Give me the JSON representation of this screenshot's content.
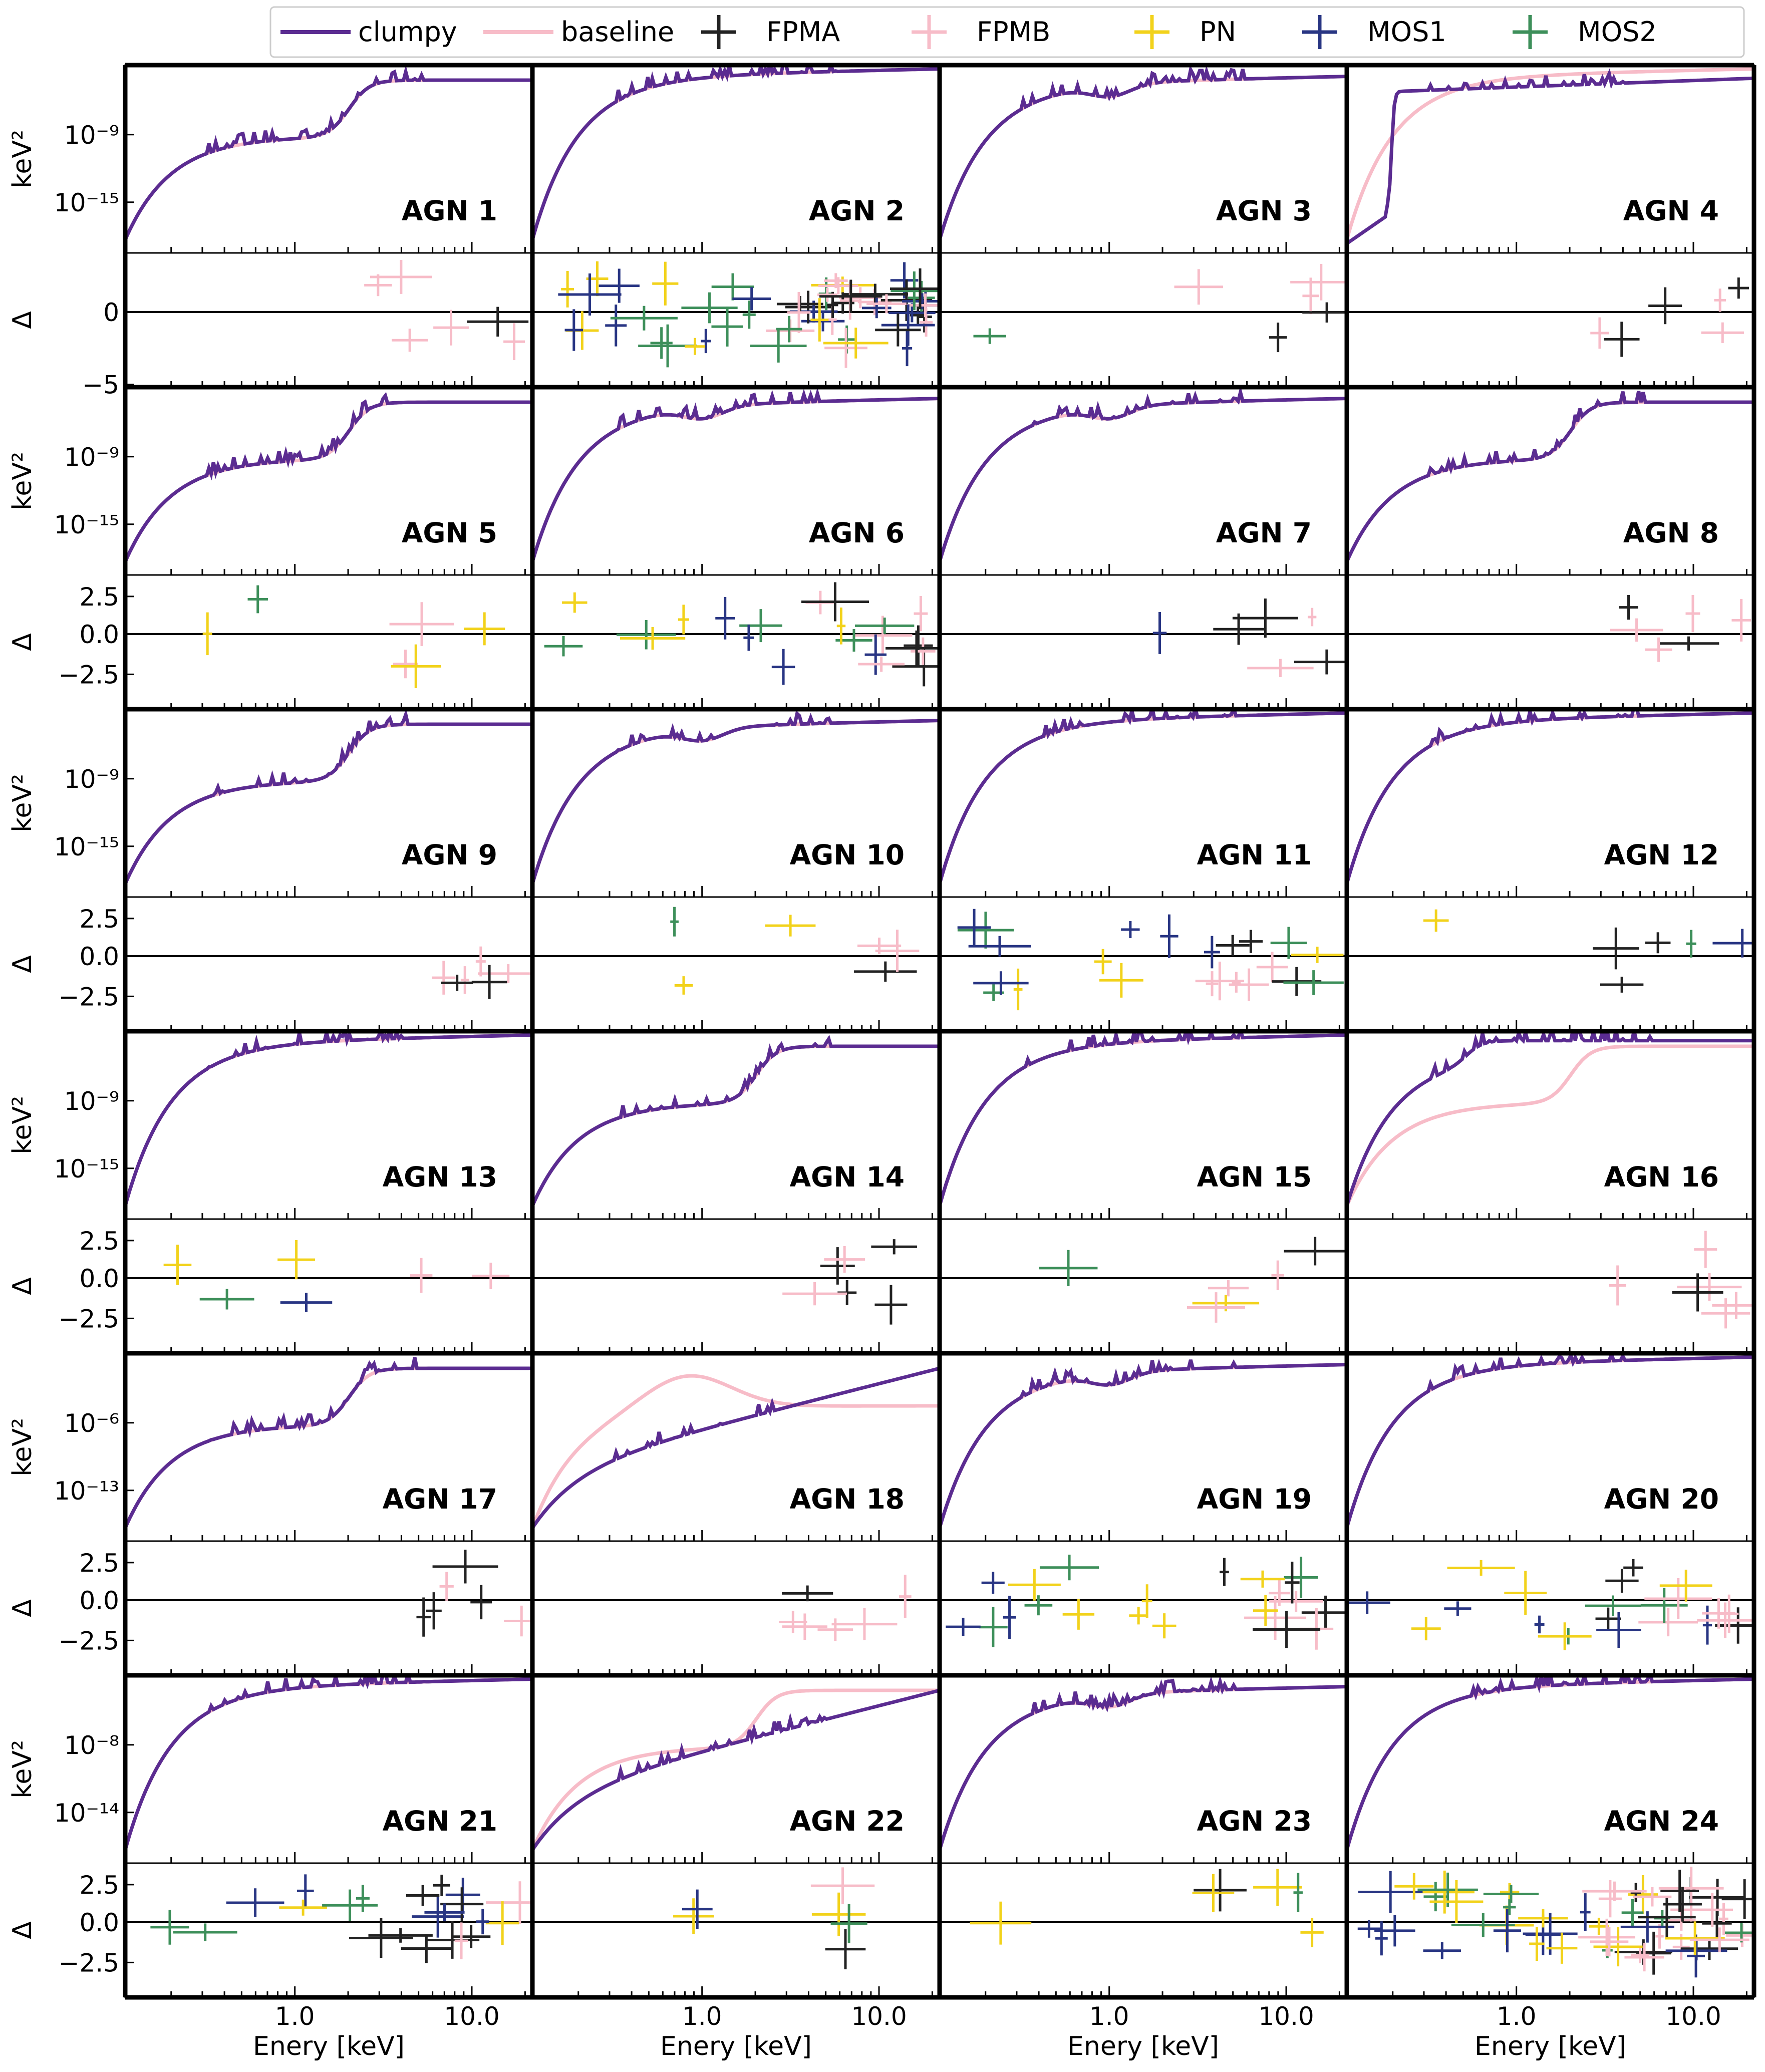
{
  "chart_data": {
    "type": "line",
    "title": "",
    "xlabel": "Enery [keV]",
    "ylabel_top": "keV²",
    "ylabel_bottom": "Δ",
    "xlim": [
      0.11,
      22.0
    ],
    "x_ticks": [
      "1.0",
      "10.0"
    ],
    "legend": {
      "placement": "top",
      "entries": [
        {
          "name": "clumpy",
          "kind": "line",
          "color": "#5b2c91"
        },
        {
          "name": "baseline",
          "kind": "line",
          "color": "#f7bcc8"
        },
        {
          "name": "FPMA",
          "kind": "errorbar",
          "color": "#222222"
        },
        {
          "name": "FPMB",
          "kind": "errorbar",
          "color": "#f7bcc8"
        },
        {
          "name": "PN",
          "kind": "errorbar",
          "color": "#f2d21b"
        },
        {
          "name": "MOS1",
          "kind": "errorbar",
          "color": "#283583"
        },
        {
          "name": "MOS2",
          "kind": "errorbar",
          "color": "#3d8f5a"
        }
      ]
    },
    "rows": [
      {
        "model_yticks": [
          "10⁻⁹",
          "10⁻¹⁵"
        ],
        "resid_yticks": [
          "0",
          "−5"
        ]
      },
      {
        "model_yticks": [
          "10⁻⁹",
          "10⁻¹⁵"
        ],
        "resid_yticks": [
          "2.5",
          "0.0",
          "−2.5"
        ]
      },
      {
        "model_yticks": [
          "10⁻⁹",
          "10⁻¹⁵"
        ],
        "resid_yticks": [
          "2.5",
          "0.0",
          "−2.5"
        ]
      },
      {
        "model_yticks": [
          "10⁻⁹",
          "10⁻¹⁵"
        ],
        "resid_yticks": [
          "2.5",
          "0.0",
          "−2.5"
        ]
      },
      {
        "model_yticks": [
          "10⁻⁶",
          "10⁻¹³"
        ],
        "resid_yticks": [
          "2.5",
          "0.0",
          "−2.5"
        ]
      },
      {
        "model_yticks": [
          "10⁻⁸",
          "10⁻¹⁴"
        ],
        "resid_yticks": [
          "2.5",
          "0.0",
          "−2.5"
        ]
      }
    ],
    "panels": [
      {
        "label": "AGN 1"
      },
      {
        "label": "AGN 2"
      },
      {
        "label": "AGN 3"
      },
      {
        "label": "AGN 4"
      },
      {
        "label": "AGN 5"
      },
      {
        "label": "AGN 6"
      },
      {
        "label": "AGN 7"
      },
      {
        "label": "AGN 8"
      },
      {
        "label": "AGN 9"
      },
      {
        "label": "AGN 10"
      },
      {
        "label": "AGN 11"
      },
      {
        "label": "AGN 12"
      },
      {
        "label": "AGN 13"
      },
      {
        "label": "AGN 14"
      },
      {
        "label": "AGN 15"
      },
      {
        "label": "AGN 16"
      },
      {
        "label": "AGN 17"
      },
      {
        "label": "AGN 18"
      },
      {
        "label": "AGN 19"
      },
      {
        "label": "AGN 20"
      },
      {
        "label": "AGN 21"
      },
      {
        "label": "AGN 22"
      },
      {
        "label": "AGN 23"
      },
      {
        "label": "AGN 24"
      }
    ]
  }
}
